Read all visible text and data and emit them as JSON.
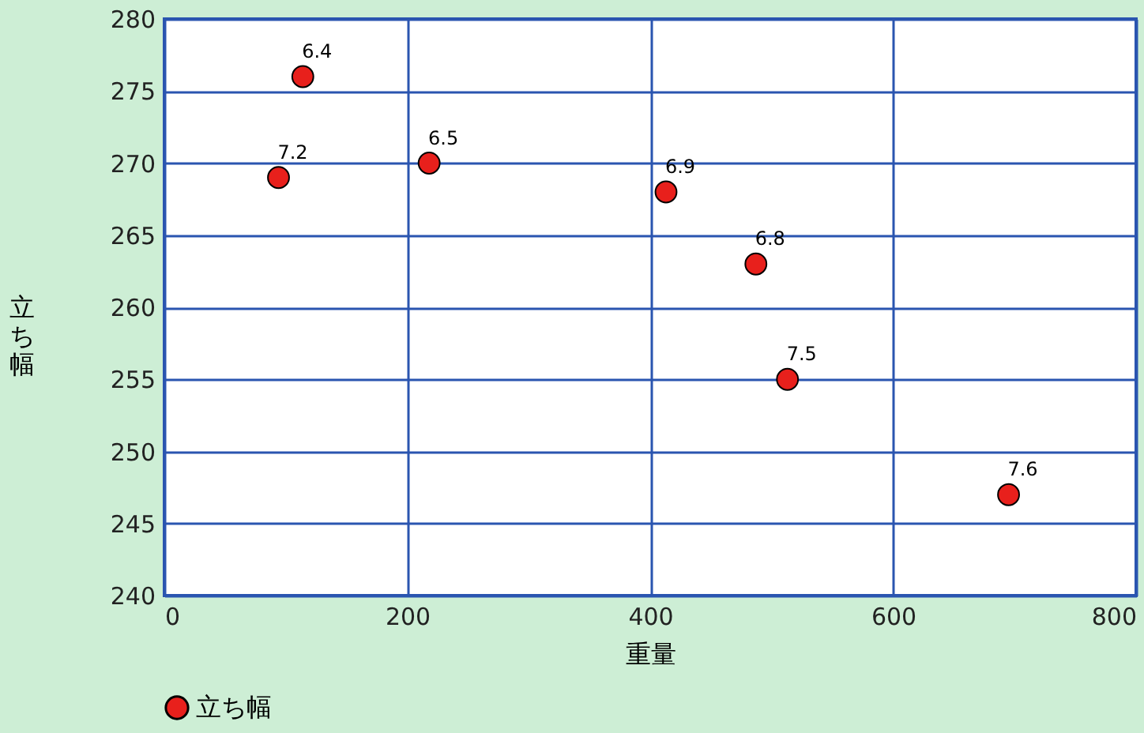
{
  "chart_data": {
    "type": "scatter",
    "xlabel": "重量",
    "ylabel": "立ち幅",
    "x": [
      114,
      94,
      218,
      413,
      487,
      513,
      695
    ],
    "series": [
      {
        "name": "立ち幅",
        "color": "#e8201c",
        "values": [
          276,
          269,
          270,
          268,
          263,
          255,
          247
        ]
      }
    ],
    "xlim": [
      0,
      800
    ],
    "xticks": [
      0,
      200,
      400,
      600,
      800
    ],
    "ylim": [
      240,
      280
    ],
    "yticks": [
      240,
      245,
      250,
      255,
      260,
      265,
      270,
      275,
      280
    ],
    "grid": true,
    "legend": "bottom left",
    "marker": "circle",
    "annotations": [
      {
        "text": "6.4",
        "x": 114,
        "y": 276
      },
      {
        "text": "7.2",
        "x": 94,
        "y": 269
      },
      {
        "text": "6.5",
        "x": 218,
        "y": 270
      },
      {
        "text": "6.9",
        "x": 413,
        "y": 268
      },
      {
        "text": "6.8",
        "x": 487,
        "y": 263
      },
      {
        "text": "7.5",
        "x": 513,
        "y": 255
      },
      {
        "text": "7.6",
        "x": 695,
        "y": 247
      }
    ]
  }
}
